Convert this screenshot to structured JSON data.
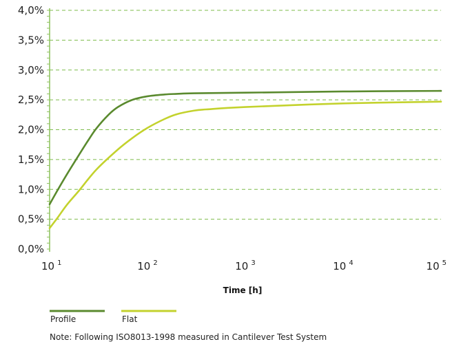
{
  "chart_data": {
    "type": "line",
    "xlabel": "Time [h]",
    "ylabel": "",
    "x_scale": "log",
    "xlim": [
      10,
      100000
    ],
    "ylim": [
      0,
      4.0
    ],
    "x_ticks": [
      {
        "value": 10,
        "base": "10",
        "exp": "1"
      },
      {
        "value": 100,
        "base": "10",
        "exp": "2"
      },
      {
        "value": 1000,
        "base": "10",
        "exp": "3"
      },
      {
        "value": 10000,
        "base": "10",
        "exp": "4"
      },
      {
        "value": 100000,
        "base": "10",
        "exp": "5"
      }
    ],
    "y_ticks": [
      {
        "value": 0.0,
        "label": "0,0%"
      },
      {
        "value": 0.5,
        "label": "0,5%"
      },
      {
        "value": 1.0,
        "label": "1,0%"
      },
      {
        "value": 1.5,
        "label": "1,5%"
      },
      {
        "value": 2.0,
        "label": "2,0%"
      },
      {
        "value": 2.5,
        "label": "2,5%"
      },
      {
        "value": 3.0,
        "label": "3,0%"
      },
      {
        "value": 3.5,
        "label": "3,5%"
      },
      {
        "value": 4.0,
        "label": "4,0%"
      }
    ],
    "grid": "horizontal-dashed",
    "legend_position": "bottom-left",
    "series": [
      {
        "name": "Profile",
        "color": "#5a8a2e",
        "points": [
          [
            10,
            0.75
          ],
          [
            12,
            0.98
          ],
          [
            15,
            1.25
          ],
          [
            20,
            1.58
          ],
          [
            25,
            1.83
          ],
          [
            30,
            2.02
          ],
          [
            40,
            2.25
          ],
          [
            50,
            2.38
          ],
          [
            70,
            2.5
          ],
          [
            100,
            2.56
          ],
          [
            150,
            2.59
          ],
          [
            200,
            2.6
          ],
          [
            300,
            2.61
          ],
          [
            1000,
            2.62
          ],
          [
            10000,
            2.64
          ],
          [
            100000,
            2.65
          ]
        ]
      },
      {
        "name": "Flat",
        "color": "#c3d22d",
        "points": [
          [
            10,
            0.35
          ],
          [
            12,
            0.52
          ],
          [
            15,
            0.74
          ],
          [
            20,
            0.98
          ],
          [
            30,
            1.33
          ],
          [
            50,
            1.67
          ],
          [
            70,
            1.86
          ],
          [
            100,
            2.03
          ],
          [
            150,
            2.18
          ],
          [
            200,
            2.26
          ],
          [
            300,
            2.32
          ],
          [
            400,
            2.34
          ],
          [
            1000,
            2.38
          ],
          [
            10000,
            2.44
          ],
          [
            100000,
            2.47
          ]
        ]
      }
    ]
  },
  "note": "Note: Following ISO8013-1998 measured in Cantilever Test System"
}
